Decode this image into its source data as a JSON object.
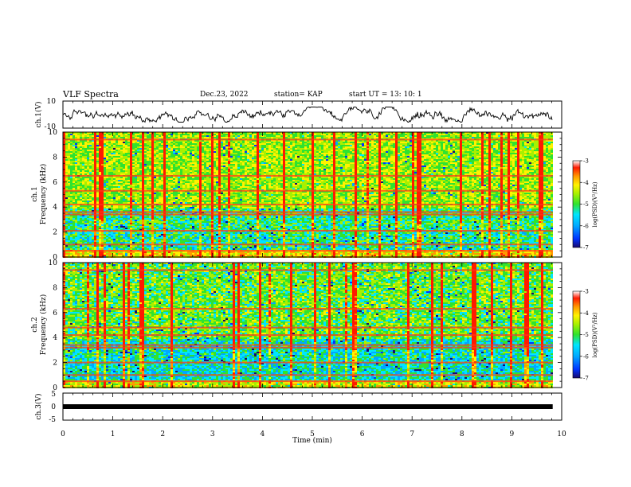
{
  "header": {
    "title": "VLF Spectra",
    "date": "Dec.23, 2022",
    "station": "station= KAP",
    "start": "start  UT =   13: 10: 1"
  },
  "chart_data": [
    {
      "type": "line",
      "id": "ch1-waveform",
      "ylabel": "ch.1(V)",
      "ylim": [
        -10,
        10
      ],
      "y_ticks": [
        "10",
        "-10"
      ],
      "xlim": [
        0,
        10
      ],
      "x_data_range": [
        0,
        9.82
      ],
      "series": [
        {
          "values_range": [
            -4,
            4
          ],
          "color": "#000000"
        }
      ]
    },
    {
      "type": "heatmap",
      "id": "ch1-spectrogram",
      "ylabel": "Frequency (kHz)",
      "channel_label": "ch.1",
      "ylim": [
        0,
        10
      ],
      "y_ticks": [
        "0",
        "2",
        "4",
        "6",
        "8",
        "10"
      ],
      "xlim": [
        0,
        10
      ],
      "x_data_range": [
        0,
        9.82
      ],
      "colorbar": {
        "label": "log(PSD)(V²/Hz)",
        "range": [
          -7,
          -3
        ],
        "ticks": [
          "-3",
          "-4",
          "-5",
          "-6",
          "-7"
        ]
      },
      "horizontal_lines_khz": [
        0.5,
        1.0,
        2.1,
        3.4,
        3.6,
        4.2,
        5.3,
        6.5,
        9.4
      ]
    },
    {
      "type": "heatmap",
      "id": "ch2-spectrogram",
      "ylabel": "Frequency (kHz)",
      "channel_label": "ch.2",
      "ylim": [
        0,
        10
      ],
      "y_ticks": [
        "0",
        "2",
        "4",
        "6",
        "8",
        "10"
      ],
      "xlim": [
        0,
        10
      ],
      "x_data_range": [
        0,
        9.82
      ],
      "colorbar": {
        "label": "log(PSD)(V²/Hz)",
        "range": [
          -7,
          -3
        ],
        "ticks": [
          "-3",
          "-4",
          "-5",
          "-6",
          "-7"
        ]
      },
      "horizontal_lines_khz": [
        0.5,
        1.0,
        2.0,
        3.2,
        3.4,
        4.2,
        4.8,
        6.3,
        9.4
      ]
    },
    {
      "type": "line",
      "id": "ch3-waveform",
      "ylabel": "ch.3(V)",
      "ylim": [
        -5,
        5
      ],
      "y_ticks": [
        "5",
        "0",
        "-5"
      ],
      "xlim": [
        0,
        10
      ],
      "x_data_range": [
        0,
        9.82
      ],
      "xlabel": "Time  (min)",
      "x_ticks": [
        "0",
        "1",
        "2",
        "3",
        "4",
        "5",
        "6",
        "7",
        "8",
        "9",
        "10"
      ],
      "series": [
        {
          "values_range": [
            -0.2,
            0.2
          ],
          "color": "#000000"
        }
      ]
    }
  ],
  "colors": {
    "colormap": [
      "#1a0a6e",
      "#0033ff",
      "#00a8ff",
      "#00e5ff",
      "#2fe32f",
      "#a8f000",
      "#fff200",
      "#ff9a00",
      "#ff1a00",
      "#ffffff"
    ],
    "axis": "#000000",
    "background": "#ffffff"
  }
}
